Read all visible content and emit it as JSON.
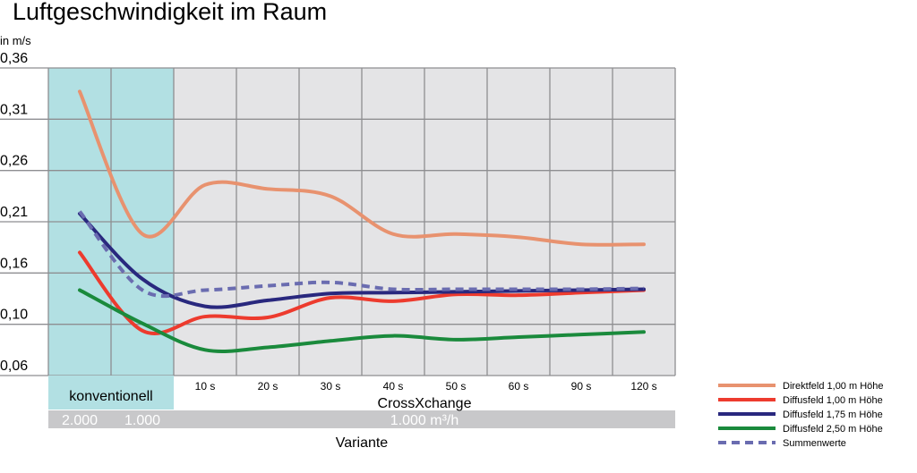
{
  "chart_data": {
    "type": "line",
    "title": "Luftgeschwindigkeit im Raum",
    "ylabel": "in m/s",
    "xlabel": "Variante",
    "ylim": [
      0.06,
      0.36
    ],
    "yticks": [
      "0,06",
      "0,10",
      "0,16",
      "0,21",
      "0,26",
      "0,31",
      "0,36"
    ],
    "grid": true,
    "categories": [
      "2.000",
      "1.000",
      "10 s",
      "20 s",
      "30 s",
      "40 s",
      "50 s",
      "60 s",
      "90 s",
      "120 s"
    ],
    "x_groups": {
      "konventionell": {
        "label": "konventionell",
        "values": [
          "2.000",
          "1.000"
        ],
        "color": "#b2e0e3"
      },
      "crossxchange": {
        "label": "CrossXchange",
        "flow": "1.000 m³/h"
      }
    },
    "legend_position": "bottom-right",
    "series": [
      {
        "name": "Direktfeld 1,00 m Höhe",
        "color": "#e8926f",
        "style": "solid",
        "values": [
          0.337,
          0.198,
          0.246,
          0.242,
          0.235,
          0.198,
          0.198,
          0.195,
          0.188,
          0.188
        ]
      },
      {
        "name": "Diffusfeld 1,00 m Höhe",
        "color": "#ed3b2e",
        "style": "solid",
        "values": [
          0.18,
          0.095,
          0.109,
          0.108,
          0.131,
          0.127,
          0.135,
          0.134,
          0.137,
          0.14
        ]
      },
      {
        "name": "Diffusfeld 1,75 m Höhe",
        "color": "#29287e",
        "style": "solid",
        "values": [
          0.218,
          0.153,
          0.121,
          0.128,
          0.136,
          0.137,
          0.138,
          0.139,
          0.14,
          0.141
        ]
      },
      {
        "name": "Diffusfeld 2,50 m Höhe",
        "color": "#1a8a3c",
        "style": "solid",
        "values": [
          0.14,
          0.101,
          0.08,
          0.082,
          0.087,
          0.091,
          0.088,
          0.09,
          0.092,
          0.094
        ]
      },
      {
        "name": "Summenwerte",
        "color": "#6a6cb0",
        "style": "dashed",
        "values": [
          0.22,
          0.14,
          0.14,
          0.145,
          0.149,
          0.141,
          0.141,
          0.141,
          0.141,
          0.142
        ]
      }
    ]
  }
}
